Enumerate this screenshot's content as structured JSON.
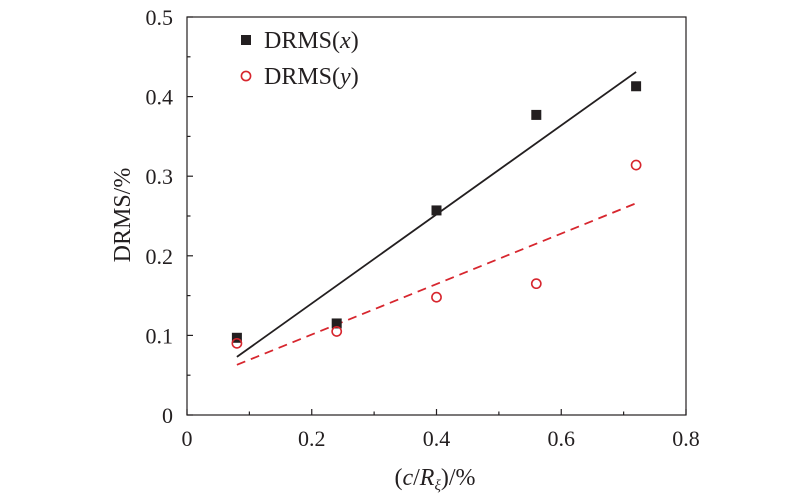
{
  "chart_data": {
    "type": "scatter",
    "xlabel": "(c/Rξ)/%",
    "xlabel_parts": {
      "open": "(",
      "c": "c",
      "slash": "/",
      "R": "R",
      "sub": "ξ",
      "close": ")/%"
    },
    "ylabel": "DRMS/%",
    "xlim": [
      0,
      0.8
    ],
    "ylim": [
      0,
      0.5
    ],
    "xticks": [
      "0",
      "0.2",
      "0.4",
      "0.6",
      "0.8"
    ],
    "yticks": [
      "0",
      "0.1",
      "0.2",
      "0.3",
      "0.4",
      "0.5"
    ],
    "grid": false,
    "legend_position": "top-left",
    "series": [
      {
        "name": "DRMS(x)",
        "name_prefix": "DRMS(",
        "name_var": "x",
        "name_suffix": ")",
        "marker": "filled-square",
        "color": "#231f20",
        "x": [
          0.08,
          0.24,
          0.4,
          0.56,
          0.72
        ],
        "y": [
          0.097,
          0.115,
          0.257,
          0.377,
          0.413
        ],
        "fit": {
          "style": "solid",
          "x": [
            0.08,
            0.72
          ],
          "y": [
            0.073,
            0.431
          ]
        }
      },
      {
        "name": "DRMS(y)",
        "name_prefix": "DRMS(",
        "name_var": "y",
        "name_suffix": ")",
        "marker": "open-circle",
        "color": "#d7262e",
        "x": [
          0.08,
          0.24,
          0.4,
          0.56,
          0.72
        ],
        "y": [
          0.09,
          0.105,
          0.148,
          0.165,
          0.314
        ],
        "fit": {
          "style": "dashed",
          "x": [
            0.08,
            0.72
          ],
          "y": [
            0.063,
            0.266
          ]
        }
      }
    ]
  }
}
